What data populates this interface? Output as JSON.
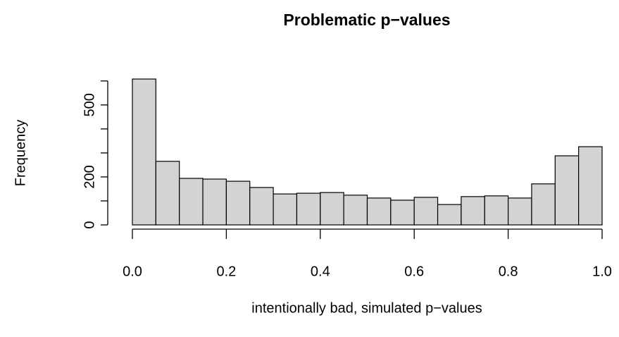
{
  "chart_data": {
    "type": "histogram",
    "title": "Problematic p−values",
    "xlabel": "intentionally bad, simulated p−values",
    "ylabel": "Frequency",
    "bins": [
      0,
      0.05,
      0.1,
      0.15,
      0.2,
      0.25,
      0.3,
      0.35,
      0.4,
      0.45,
      0.5,
      0.55,
      0.6,
      0.65,
      0.7,
      0.75,
      0.8,
      0.85,
      0.9,
      0.95,
      1.0
    ],
    "values": [
      608,
      265,
      194,
      191,
      182,
      156,
      129,
      132,
      135,
      124,
      112,
      103,
      115,
      85,
      118,
      121,
      112,
      171,
      288,
      326
    ],
    "color": "#d3d3d3",
    "xlim": [
      0,
      1
    ],
    "xticks": [
      {
        "value": 0,
        "label": "0.0"
      },
      0.2,
      0.4,
      0.6,
      0.8,
      {
        "value": 1,
        "label": "1.0"
      }
    ],
    "ylim": [
      0,
      620
    ],
    "yticks": [
      0,
      {
        "value": 100,
        "label": null
      },
      200,
      {
        "value": 300,
        "label": null
      },
      {
        "value": 400,
        "label": null
      },
      500,
      {
        "value": 600,
        "label": null
      }
    ],
    "grid": false
  }
}
